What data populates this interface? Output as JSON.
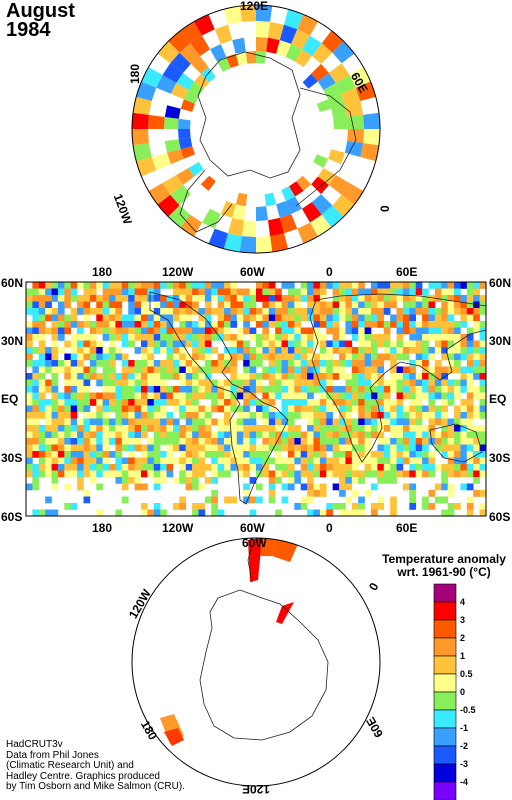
{
  "header": {
    "month": "August",
    "year": "1984"
  },
  "north_map": {
    "lon_labels": {
      "top": "120E",
      "upper_left": "180",
      "upper_right": "60E",
      "lower_left": "120W",
      "right": "0"
    }
  },
  "center_map": {
    "lon_labels": [
      "180",
      "120W",
      "60W",
      "0",
      "60E"
    ],
    "lat_labels": [
      "60N",
      "30N",
      "EQ",
      "30S",
      "60S"
    ]
  },
  "south_map": {
    "lon_labels": {
      "top": "60W",
      "upper_left": "120W",
      "right": "0",
      "lower_left": "180",
      "lower_right": "60E",
      "bottom": "120E"
    }
  },
  "legend": {
    "title_line1": "Temperature anomaly",
    "title_line2": "wrt. 1961-90  (°C)",
    "ticks": [
      "4",
      "3",
      "2",
      "1",
      "0.5",
      "0",
      "-0.5",
      "-1",
      "-2",
      "-3",
      "-4"
    ],
    "colors": [
      "#a4007a",
      "#ff0000",
      "#ff5a00",
      "#ff9a2a",
      "#ffc23a",
      "#ffff8a",
      "#88ee5a",
      "#3aeaff",
      "#3aa0ff",
      "#1a5aff",
      "#0000dd",
      "#7a00ff"
    ]
  },
  "credits": {
    "line1": "HadCRUT3v",
    "line2": "Data from Phil Jones",
    "line3": "(Climatic Research Unit) and",
    "line4": "Hadley Centre.  Graphics produced",
    "line5": "by Tim Osborn and Mike Salmon (CRU)."
  }
}
